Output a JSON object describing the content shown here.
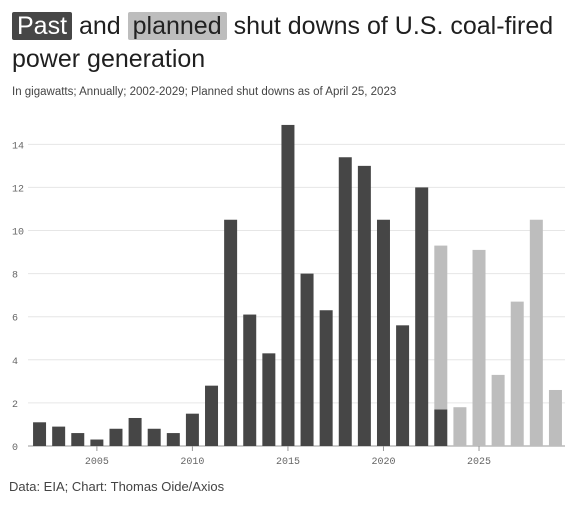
{
  "title": {
    "part1": "Past",
    "part2": " and ",
    "part3": "planned",
    "part4": " shut downs of U.S. coal-fired power generation"
  },
  "subtitle": "In gigawatts; Annually; 2002-2029; Planned shut downs as of April 25, 2023",
  "source": "Data: EIA; Chart: Thomas Oide/Axios",
  "colors": {
    "past": "#464646",
    "planned": "#bdbdbd",
    "grid": "#e6e6e6",
    "axis": "#999999"
  },
  "chart_data": {
    "type": "bar",
    "stacked": true,
    "x": [
      2002,
      2003,
      2004,
      2005,
      2006,
      2007,
      2008,
      2009,
      2010,
      2011,
      2012,
      2013,
      2014,
      2015,
      2016,
      2017,
      2018,
      2019,
      2020,
      2021,
      2022,
      2023,
      2024,
      2025,
      2026,
      2027,
      2028,
      2029
    ],
    "series": [
      {
        "name": "Past",
        "color": "#464646",
        "values": [
          1.1,
          0.9,
          0.6,
          0.3,
          0.8,
          1.3,
          0.8,
          0.6,
          1.5,
          2.8,
          10.5,
          6.1,
          4.3,
          14.9,
          8.0,
          6.3,
          13.4,
          13.0,
          10.5,
          5.6,
          12.0,
          1.7,
          0,
          0,
          0,
          0,
          0,
          0
        ]
      },
      {
        "name": "Planned",
        "color": "#bdbdbd",
        "values": [
          0,
          0,
          0,
          0,
          0,
          0,
          0,
          0,
          0,
          0,
          0,
          0,
          0,
          0,
          0,
          0,
          0,
          0,
          0,
          0,
          0,
          7.6,
          1.8,
          9.1,
          3.3,
          6.7,
          10.5,
          2.6
        ]
      }
    ],
    "yticks": [
      0,
      2,
      4,
      6,
      8,
      10,
      12,
      14
    ],
    "xticks": [
      2005,
      2010,
      2015,
      2020,
      2025
    ],
    "ylim": [
      0,
      15.5
    ],
    "xlim": [
      2001.5,
      2029.5
    ],
    "grid": true
  }
}
